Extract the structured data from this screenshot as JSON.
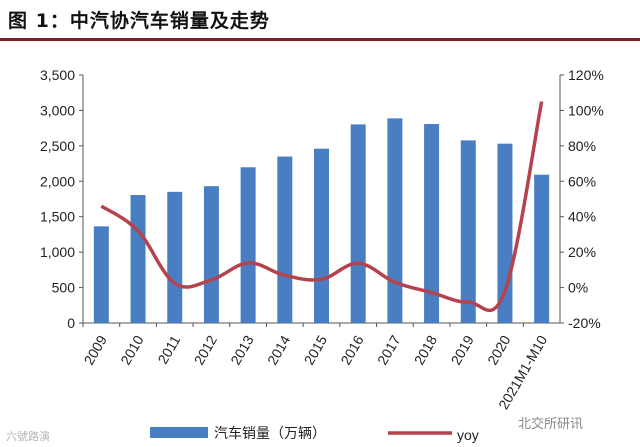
{
  "header": {
    "title": "图 1：中汽协汽车销量及走势"
  },
  "watermarks": {
    "left": "六號路演",
    "right": "北交所研讯"
  },
  "colors": {
    "bar": "#4a7ec2",
    "line": "#b4434e",
    "rule": "#7b1f2a"
  },
  "chart_data": {
    "type": "bar",
    "categories": [
      "2009",
      "2010",
      "2011",
      "2012",
      "2013",
      "2014",
      "2015",
      "2016",
      "2017",
      "2018",
      "2019",
      "2020",
      "2021M1-M10"
    ],
    "series": [
      {
        "name": "汽车销量（万辆）",
        "type": "bar",
        "axis": "left",
        "values": [
          1364,
          1806,
          1851,
          1931,
          2198,
          2349,
          2460,
          2803,
          2888,
          2808,
          2577,
          2531,
          2093
        ]
      },
      {
        "name": "yoy",
        "type": "line",
        "axis": "right",
        "values": [
          0.46,
          0.32,
          0.025,
          0.043,
          0.139,
          0.069,
          0.047,
          0.137,
          0.03,
          -0.028,
          -0.082,
          -0.019,
          1.05
        ]
      }
    ],
    "y_left": {
      "lim": [
        0,
        3500
      ],
      "ticks": [
        0,
        500,
        1000,
        1500,
        2000,
        2500,
        3000,
        3500
      ],
      "tick_labels": [
        "0",
        "500",
        "1,000",
        "1,500",
        "2,000",
        "2,500",
        "3,000",
        "3,500"
      ]
    },
    "y_right": {
      "lim": [
        -0.2,
        1.2
      ],
      "ticks": [
        -0.2,
        0,
        0.2,
        0.4,
        0.6,
        0.8,
        1.0,
        1.2
      ],
      "tick_labels": [
        "-20%",
        "0%",
        "20%",
        "40%",
        "60%",
        "80%",
        "100%",
        "120%"
      ]
    },
    "grid": false,
    "legend_position": "bottom"
  }
}
